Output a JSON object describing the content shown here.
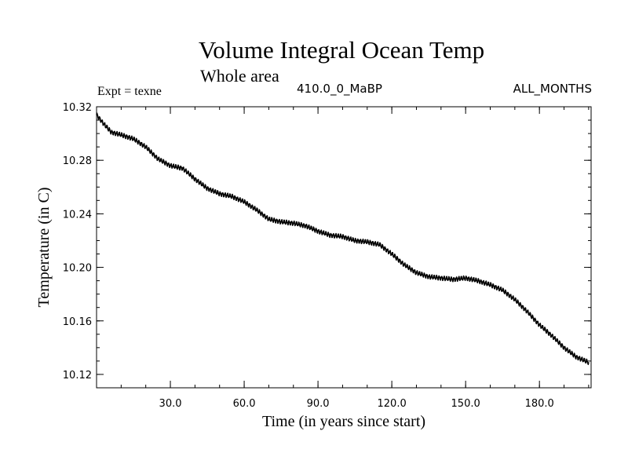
{
  "chart_data": {
    "type": "line",
    "title": "Volume Integral Ocean Temp",
    "subtitle": "Whole area",
    "experiment_label": "Expt = texne",
    "period_label": "410.0_0_MaBP",
    "months_label": "ALL_MONTHS",
    "xlabel": "Time (in years since start)",
    "ylabel": "Temperature (in C)",
    "xlim": [
      0,
      201
    ],
    "ylim": [
      10.11,
      10.32
    ],
    "xticks": [
      30,
      60,
      90,
      120,
      150,
      180
    ],
    "xtick_labels": [
      "30.0",
      "60.0",
      "90.0",
      "120.0",
      "150.0",
      "180.0"
    ],
    "yticks": [
      10.12,
      10.16,
      10.2,
      10.24,
      10.28,
      10.32
    ],
    "ytick_labels": [
      "10.12",
      "10.16",
      "10.20",
      "10.24",
      "10.28",
      "10.32"
    ],
    "line_color": "#000000",
    "series": [
      {
        "name": "Volume Integral Ocean Temp",
        "x": [
          0,
          3,
          6,
          10,
          15,
          20,
          25,
          30,
          35,
          40,
          45,
          50,
          55,
          60,
          65,
          70,
          75,
          80,
          85,
          90,
          95,
          100,
          105,
          110,
          115,
          120,
          125,
          130,
          135,
          140,
          145,
          150,
          155,
          160,
          165,
          170,
          175,
          180,
          185,
          190,
          195,
          200
        ],
        "values": [
          10.314,
          10.307,
          10.301,
          10.299,
          10.296,
          10.29,
          10.281,
          10.276,
          10.274,
          10.266,
          10.259,
          10.255,
          10.253,
          10.249,
          10.243,
          10.236,
          10.234,
          10.233,
          10.231,
          10.227,
          10.224,
          10.223,
          10.22,
          10.219,
          10.217,
          10.21,
          10.202,
          10.196,
          10.193,
          10.192,
          10.191,
          10.192,
          10.19,
          10.187,
          10.183,
          10.176,
          10.167,
          10.157,
          10.149,
          10.14,
          10.133,
          10.129
        ]
      }
    ]
  }
}
